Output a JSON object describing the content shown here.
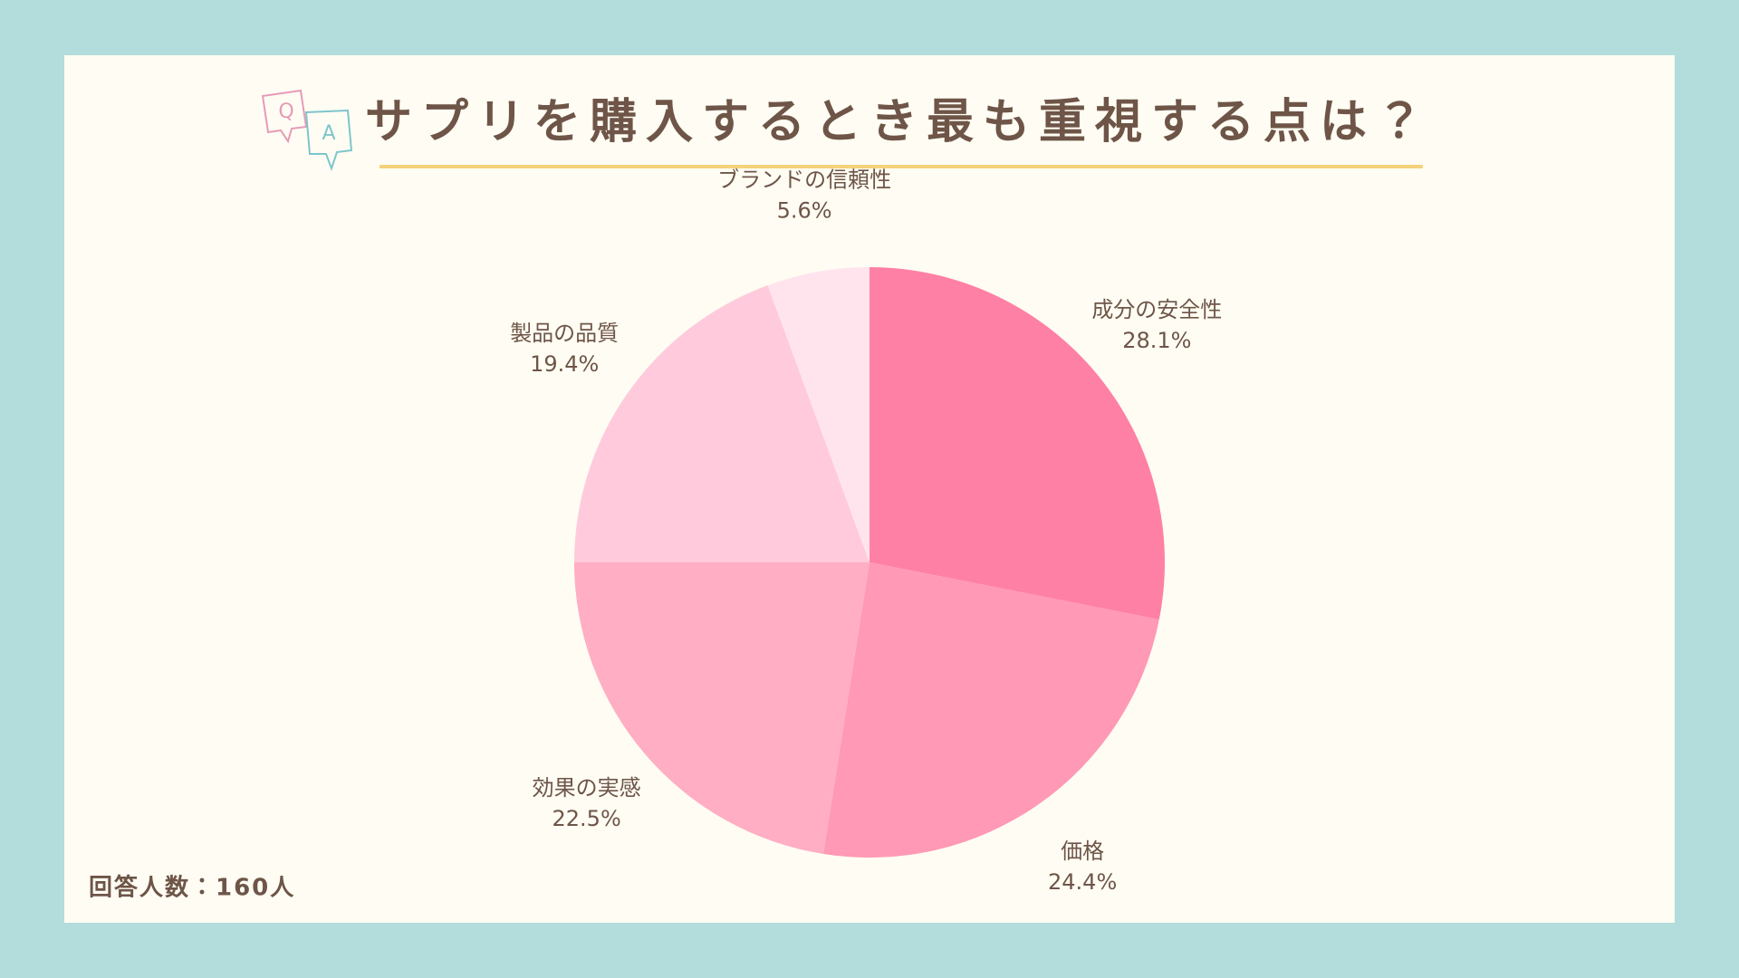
{
  "chart_data": {
    "type": "pie",
    "title": "サプリを購入するとき最も重視する点は？",
    "categories": [
      "成分の安全性",
      "価格",
      "効果の実感",
      "製品の品質",
      "ブランドの信頼性"
    ],
    "values": [
      28.1,
      24.4,
      22.5,
      19.4,
      5.6
    ],
    "value_labels": [
      "28.1%",
      "24.4%",
      "22.5%",
      "19.4%",
      "5.6%"
    ],
    "colors": [
      "#ff80a5",
      "#ff99b5",
      "#ffaec4",
      "#ffcbdc",
      "#ffe4ee"
    ],
    "note": "回答人数：160人"
  }
}
